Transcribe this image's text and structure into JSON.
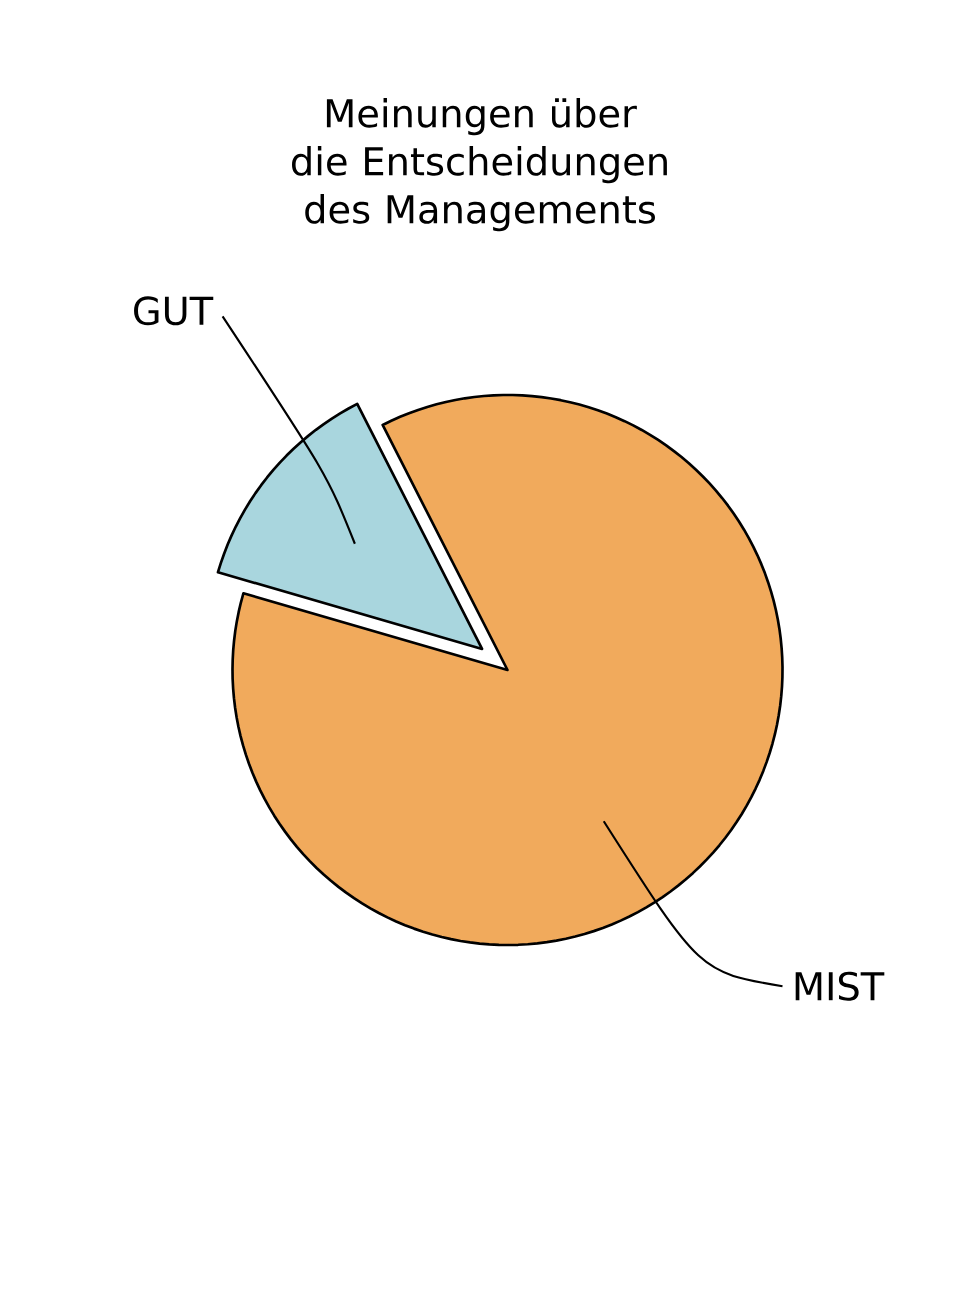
{
  "chart_data": {
    "type": "pie",
    "title": "Meinungen über die Entscheidungen des Managements",
    "categories": [
      "GUT",
      "MIST"
    ],
    "values": [
      13,
      87
    ],
    "colors": [
      "#a9d6de",
      "#f1aa5c"
    ]
  }
}
